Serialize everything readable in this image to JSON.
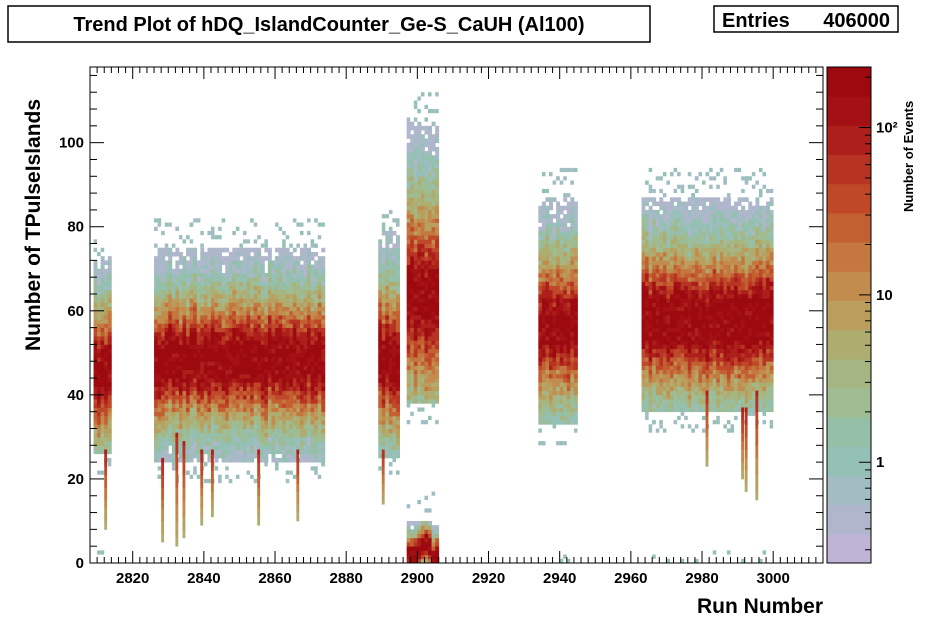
{
  "chart_data": {
    "type": "heatmap",
    "title": "Trend Plot of hDQ_IslandCounter_Ge-S_CaUH (Al100)",
    "stats": {
      "label": "Entries",
      "value": "406000"
    },
    "xlabel": "Run Number",
    "ylabel": "Number of TPulseIslands",
    "zlabel": "Number of Events",
    "xlim": [
      2808,
      3014
    ],
    "ylim": [
      0,
      118
    ],
    "x_ticks": [
      "2820",
      "2840",
      "2860",
      "2880",
      "2900",
      "2920",
      "2940",
      "2960",
      "2980",
      "3000"
    ],
    "x_tick_values": [
      2820,
      2840,
      2860,
      2880,
      2900,
      2920,
      2940,
      2960,
      2980,
      3000
    ],
    "y_ticks": [
      "0",
      "20",
      "40",
      "60",
      "80",
      "100"
    ],
    "y_tick_values": [
      0,
      20,
      40,
      60,
      80,
      100
    ],
    "z_scale": "log",
    "z_range": [
      0.25,
      230
    ],
    "z_ticks": [
      "1",
      "10",
      "10²"
    ],
    "z_tick_values": [
      1,
      10,
      100
    ],
    "palette": [
      "#bfb3d6",
      "#b0b7cd",
      "#a1bcc2",
      "#95c0b6",
      "#95bfa6",
      "#9fbc93",
      "#a6b682",
      "#afac6f",
      "#b99e5d",
      "#c18c4d",
      "#c4773e",
      "#c36032",
      "#bf4829",
      "#b73322",
      "#ad1f1b",
      "#a31115",
      "#9c0a10"
    ],
    "regions": [
      {
        "x": [
          2809,
          2813
        ],
        "core_y": [
          41,
          49
        ],
        "ymin": 26,
        "ymax": 72
      },
      {
        "x": [
          2826,
          2873
        ],
        "core_y": [
          44,
          52
        ],
        "ymin": 24,
        "ymax": 74
      },
      {
        "x": [
          2889,
          2894
        ],
        "core_y": [
          44,
          52
        ],
        "ymin": 25,
        "ymax": 78
      },
      {
        "x": [
          2897,
          2905
        ],
        "core_y": [
          58,
          68
        ],
        "ymin": 38,
        "ymax": 104
      },
      {
        "x": [
          2897,
          2905
        ],
        "core_y": [
          1,
          4
        ],
        "ymin": 0,
        "ymax": 9
      },
      {
        "x": [
          2934,
          2944
        ],
        "core_y": [
          52,
          60
        ],
        "ymin": 33,
        "ymax": 86
      },
      {
        "x": [
          2963,
          2999
        ],
        "core_y": [
          52,
          62
        ],
        "ymin": 36,
        "ymax": 86
      }
    ],
    "spikes": [
      {
        "x": 2812,
        "ymin": 8,
        "ymax": 26
      },
      {
        "x": 2828,
        "ymin": 5,
        "ymax": 24
      },
      {
        "x": 2832,
        "ymin": 4,
        "ymax": 30
      },
      {
        "x": 2834,
        "ymin": 6,
        "ymax": 28
      },
      {
        "x": 2839,
        "ymin": 9,
        "ymax": 26
      },
      {
        "x": 2842,
        "ymin": 11,
        "ymax": 26
      },
      {
        "x": 2855,
        "ymin": 9,
        "ymax": 26
      },
      {
        "x": 2866,
        "ymin": 10,
        "ymax": 26
      },
      {
        "x": 2890,
        "ymin": 14,
        "ymax": 26
      },
      {
        "x": 2981,
        "ymin": 23,
        "ymax": 40
      },
      {
        "x": 2991,
        "ymin": 20,
        "ymax": 36
      },
      {
        "x": 2992,
        "ymin": 17,
        "ymax": 36
      },
      {
        "x": 2995,
        "ymin": 15,
        "ymax": 40
      }
    ],
    "grid": false,
    "legend": "none"
  }
}
